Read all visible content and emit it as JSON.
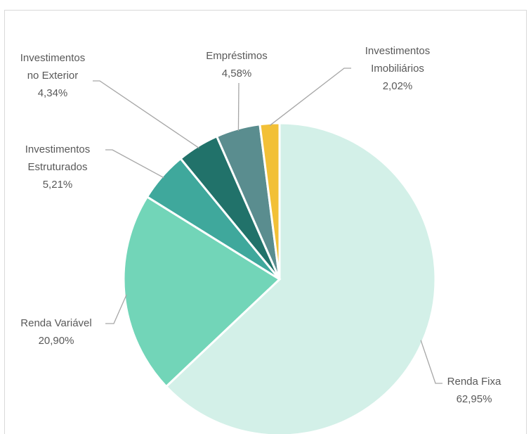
{
  "chart_data": {
    "type": "pie",
    "categories": [
      "Renda Fixa",
      "Renda Variável",
      "Investimentos Estruturados",
      "Investimentos no Exterior",
      "Empréstimos",
      "Investimentos Imobiliários"
    ],
    "values": [
      62.95,
      20.9,
      5.21,
      4.34,
      4.58,
      2.02
    ],
    "value_labels": [
      "62,95%",
      "20,90%",
      "5,21%",
      "4,34%",
      "4,58%",
      "2,02%"
    ],
    "colors": [
      "#d3f0e8",
      "#72d5b8",
      "#3fa89c",
      "#21726a",
      "#5a8d8f",
      "#f2c037"
    ]
  }
}
